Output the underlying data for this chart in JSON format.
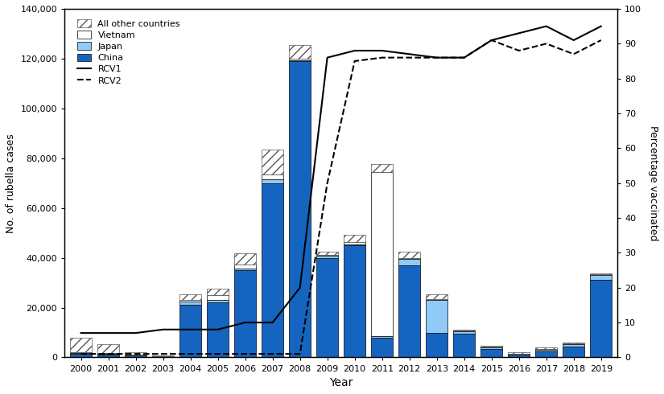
{
  "years": [
    2000,
    2001,
    2002,
    2003,
    2004,
    2005,
    2006,
    2007,
    2008,
    2009,
    2010,
    2011,
    2012,
    2013,
    2014,
    2015,
    2016,
    2017,
    2018,
    2019
  ],
  "china": [
    1500,
    1200,
    700,
    200,
    21000,
    22000,
    35000,
    70000,
    119000,
    40000,
    45000,
    8000,
    37000,
    10000,
    9500,
    3500,
    1200,
    2500,
    4500,
    31000
  ],
  "japan": [
    300,
    300,
    200,
    100,
    1500,
    1000,
    800,
    1500,
    400,
    800,
    500,
    500,
    2500,
    13000,
    1000,
    400,
    200,
    600,
    800,
    2000
  ],
  "vietnam": [
    200,
    200,
    100,
    50,
    500,
    2000,
    1500,
    2000,
    500,
    300,
    800,
    66000,
    400,
    300,
    200,
    300,
    200,
    300,
    300,
    300
  ],
  "others": [
    6000,
    3500,
    1200,
    500,
    2500,
    2500,
    4500,
    10000,
    5500,
    1200,
    3000,
    3000,
    2500,
    2000,
    500,
    400,
    400,
    700,
    500,
    500
  ],
  "rcv1": [
    7,
    7,
    7,
    8,
    8,
    8,
    10,
    10,
    20,
    86,
    88,
    88,
    87,
    86,
    86,
    91,
    93,
    95,
    91,
    95
  ],
  "rcv2": [
    1,
    1,
    1,
    1,
    1,
    1,
    1,
    1,
    1,
    50,
    85,
    86,
    86,
    86,
    86,
    91,
    88,
    90,
    87,
    91
  ],
  "china_color": "#1565C0",
  "japan_color": "#90CAF9",
  "vietnam_color": "#FFFFFF",
  "others_hatch": "///",
  "others_facecolor": "#FFFFFF",
  "others_edgecolor": "#555555",
  "bar_edgecolor": "#000000",
  "ylim_left": [
    0,
    140000
  ],
  "ylim_right": [
    0,
    100
  ],
  "yticks_left": [
    0,
    20000,
    40000,
    60000,
    80000,
    100000,
    120000,
    140000
  ],
  "yticks_right": [
    0,
    10,
    20,
    30,
    40,
    50,
    60,
    70,
    80,
    90,
    100
  ],
  "xlabel": "Year",
  "ylabel_left": "No. of rubella cases",
  "ylabel_right": "Percentage vaccinated",
  "rcv1_color": "#000000",
  "rcv2_color": "#000000"
}
